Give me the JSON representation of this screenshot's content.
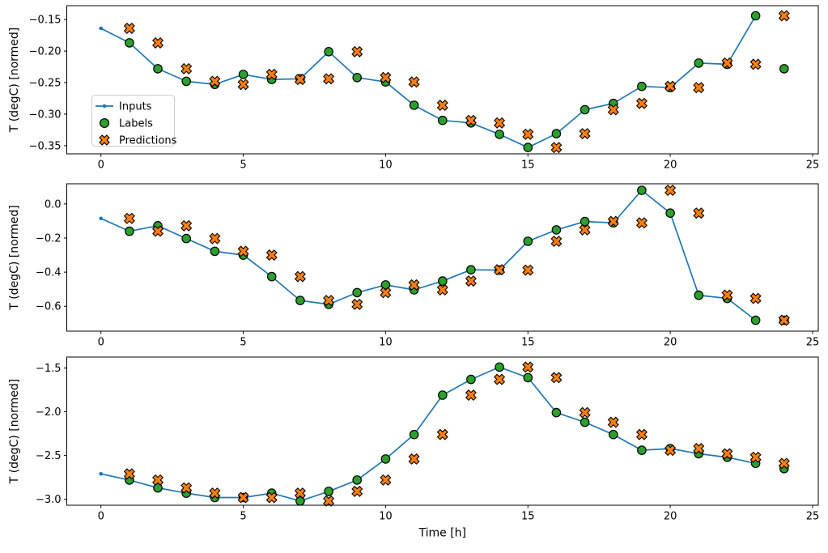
{
  "figure": {
    "background": "#ffffff",
    "text_color": "#000000",
    "spine_color": "#000000"
  },
  "legend": {
    "location": "center-left of first subplot",
    "border_color": "#cccccc",
    "background": "rgba(255,255,255,0.8)",
    "entries": [
      {
        "label": "Inputs",
        "marker": "line-dot",
        "color": "#1f77b4",
        "edge_color": "#1f77b4"
      },
      {
        "label": "Labels",
        "marker": "circle",
        "color": "#2ca02c",
        "edge_color": "#000000"
      },
      {
        "label": "Predictions",
        "marker": "x-filled",
        "color": "#ff7f0e",
        "edge_color": "#000000"
      }
    ]
  },
  "chart_data": [
    {
      "type": "line",
      "name": "subplot-top",
      "ylabel": "T (degC) [normed]",
      "xlabel": "",
      "xlim": [
        -1.2,
        25.2
      ],
      "ylim": [
        -0.363,
        -0.128
      ],
      "xticks": [
        0,
        5,
        10,
        15,
        20,
        25
      ],
      "xtick_labels": [
        "0",
        "5",
        "10",
        "15",
        "20",
        "25"
      ],
      "yticks": [
        -0.15,
        -0.2,
        -0.25,
        -0.3,
        -0.35
      ],
      "ytick_labels": [
        "−0.15",
        "−0.20",
        "−0.25",
        "−0.30",
        "−0.35"
      ],
      "grid": false,
      "show_legend": true,
      "series": [
        {
          "name": "Inputs",
          "kind": "line",
          "marker": "dot",
          "color": "#1f77b4",
          "x": [
            0,
            1,
            2,
            3,
            4,
            5,
            6,
            7,
            8,
            9,
            10,
            11,
            12,
            13,
            14,
            15,
            16,
            17,
            18,
            19,
            20,
            21,
            22,
            23
          ],
          "y": [
            -0.164,
            -0.187,
            -0.228,
            -0.248,
            -0.253,
            -0.237,
            -0.245,
            -0.244,
            -0.201,
            -0.242,
            -0.249,
            -0.286,
            -0.31,
            -0.314,
            -0.332,
            -0.353,
            -0.331,
            -0.293,
            -0.283,
            -0.256,
            -0.258,
            -0.219,
            -0.221,
            -0.144
          ]
        },
        {
          "name": "Labels",
          "kind": "scatter",
          "marker": "circle",
          "color": "#2ca02c",
          "edge_color": "#000000",
          "x": [
            1,
            2,
            3,
            4,
            5,
            6,
            7,
            8,
            9,
            10,
            11,
            12,
            13,
            14,
            15,
            16,
            17,
            18,
            19,
            20,
            21,
            22,
            23,
            24
          ],
          "y": [
            -0.187,
            -0.228,
            -0.248,
            -0.253,
            -0.237,
            -0.245,
            -0.244,
            -0.201,
            -0.242,
            -0.249,
            -0.286,
            -0.31,
            -0.314,
            -0.332,
            -0.353,
            -0.331,
            -0.293,
            -0.283,
            -0.256,
            -0.258,
            -0.219,
            -0.221,
            -0.144,
            -0.228
          ]
        },
        {
          "name": "Predictions",
          "kind": "scatter",
          "marker": "X",
          "color": "#ff7f0e",
          "edge_color": "#000000",
          "x": [
            1,
            2,
            3,
            4,
            5,
            6,
            7,
            8,
            9,
            10,
            11,
            12,
            13,
            14,
            15,
            16,
            17,
            18,
            19,
            20,
            21,
            22,
            23,
            24
          ],
          "y": [
            -0.164,
            -0.187,
            -0.228,
            -0.248,
            -0.253,
            -0.237,
            -0.245,
            -0.244,
            -0.201,
            -0.242,
            -0.249,
            -0.286,
            -0.31,
            -0.314,
            -0.332,
            -0.353,
            -0.331,
            -0.293,
            -0.283,
            -0.256,
            -0.258,
            -0.219,
            -0.221,
            -0.144
          ]
        }
      ]
    },
    {
      "type": "line",
      "name": "subplot-middle",
      "ylabel": "T (degC) [normed]",
      "xlabel": "",
      "xlim": [
        -1.2,
        25.2
      ],
      "ylim": [
        -0.746,
        0.118
      ],
      "xticks": [
        0,
        5,
        10,
        15,
        20,
        25
      ],
      "xtick_labels": [
        "0",
        "5",
        "10",
        "15",
        "20",
        "25"
      ],
      "yticks": [
        0.0,
        -0.2,
        -0.4,
        -0.6
      ],
      "ytick_labels": [
        "0.0",
        "−0.2",
        "−0.4",
        "−0.6"
      ],
      "grid": false,
      "show_legend": false,
      "series": [
        {
          "name": "Inputs",
          "kind": "line",
          "marker": "dot",
          "color": "#1f77b4",
          "x": [
            0,
            1,
            2,
            3,
            4,
            5,
            6,
            7,
            8,
            9,
            10,
            11,
            12,
            13,
            14,
            15,
            16,
            17,
            18,
            19,
            20,
            21,
            22,
            23
          ],
          "y": [
            -0.085,
            -0.16,
            -0.128,
            -0.203,
            -0.278,
            -0.3,
            -0.426,
            -0.566,
            -0.589,
            -0.52,
            -0.475,
            -0.504,
            -0.452,
            -0.386,
            -0.388,
            -0.219,
            -0.152,
            -0.103,
            -0.111,
            0.08,
            -0.054,
            -0.535,
            -0.554,
            -0.682
          ]
        },
        {
          "name": "Labels",
          "kind": "scatter",
          "marker": "circle",
          "color": "#2ca02c",
          "edge_color": "#000000",
          "x": [
            1,
            2,
            3,
            4,
            5,
            6,
            7,
            8,
            9,
            10,
            11,
            12,
            13,
            14,
            15,
            16,
            17,
            18,
            19,
            20,
            21,
            22,
            23,
            24
          ],
          "y": [
            -0.16,
            -0.128,
            -0.203,
            -0.278,
            -0.3,
            -0.426,
            -0.566,
            -0.589,
            -0.52,
            -0.475,
            -0.504,
            -0.452,
            -0.386,
            -0.388,
            -0.219,
            -0.152,
            -0.103,
            -0.111,
            0.08,
            -0.054,
            -0.535,
            -0.554,
            -0.682,
            -0.682
          ]
        },
        {
          "name": "Predictions",
          "kind": "scatter",
          "marker": "X",
          "color": "#ff7f0e",
          "edge_color": "#000000",
          "x": [
            1,
            2,
            3,
            4,
            5,
            6,
            7,
            8,
            9,
            10,
            11,
            12,
            13,
            14,
            15,
            16,
            17,
            18,
            19,
            20,
            21,
            22,
            23,
            24
          ],
          "y": [
            -0.085,
            -0.16,
            -0.128,
            -0.203,
            -0.278,
            -0.3,
            -0.426,
            -0.566,
            -0.589,
            -0.52,
            -0.475,
            -0.504,
            -0.452,
            -0.386,
            -0.388,
            -0.219,
            -0.152,
            -0.103,
            -0.111,
            0.08,
            -0.054,
            -0.535,
            -0.554,
            -0.682
          ]
        }
      ]
    },
    {
      "type": "line",
      "name": "subplot-bottom",
      "ylabel": "T (degC) [normed]",
      "xlabel": "Time [h]",
      "xlim": [
        -1.2,
        25.2
      ],
      "ylim": [
        -3.068,
        -1.375
      ],
      "xticks": [
        0,
        5,
        10,
        15,
        20,
        25
      ],
      "xtick_labels": [
        "0",
        "5",
        "10",
        "15",
        "20",
        "25"
      ],
      "yticks": [
        -1.5,
        -2.0,
        -2.5,
        -3.0
      ],
      "ytick_labels": [
        "−1.5",
        "−2.0",
        "−2.5",
        "−3.0"
      ],
      "grid": false,
      "show_legend": false,
      "series": [
        {
          "name": "Inputs",
          "kind": "line",
          "marker": "dot",
          "color": "#1f77b4",
          "x": [
            0,
            1,
            2,
            3,
            4,
            5,
            6,
            7,
            8,
            9,
            10,
            11,
            12,
            13,
            14,
            15,
            16,
            17,
            18,
            19,
            20,
            21,
            22,
            23
          ],
          "y": [
            -2.71,
            -2.78,
            -2.87,
            -2.93,
            -2.98,
            -2.98,
            -2.93,
            -3.02,
            -2.91,
            -2.78,
            -2.54,
            -2.26,
            -1.81,
            -1.63,
            -1.49,
            -1.61,
            -2.01,
            -2.12,
            -2.26,
            -2.44,
            -2.42,
            -2.48,
            -2.52,
            -2.59
          ]
        },
        {
          "name": "Labels",
          "kind": "scatter",
          "marker": "circle",
          "color": "#2ca02c",
          "edge_color": "#000000",
          "x": [
            1,
            2,
            3,
            4,
            5,
            6,
            7,
            8,
            9,
            10,
            11,
            12,
            13,
            14,
            15,
            16,
            17,
            18,
            19,
            20,
            21,
            22,
            23,
            24
          ],
          "y": [
            -2.78,
            -2.87,
            -2.93,
            -2.98,
            -2.98,
            -2.93,
            -3.02,
            -2.91,
            -2.78,
            -2.54,
            -2.26,
            -1.81,
            -1.63,
            -1.49,
            -1.61,
            -2.01,
            -2.12,
            -2.26,
            -2.44,
            -2.42,
            -2.48,
            -2.52,
            -2.59,
            -2.65
          ]
        },
        {
          "name": "Predictions",
          "kind": "scatter",
          "marker": "X",
          "color": "#ff7f0e",
          "edge_color": "#000000",
          "x": [
            1,
            2,
            3,
            4,
            5,
            6,
            7,
            8,
            9,
            10,
            11,
            12,
            13,
            14,
            15,
            16,
            17,
            18,
            19,
            20,
            21,
            22,
            23,
            24
          ],
          "y": [
            -2.71,
            -2.78,
            -2.87,
            -2.93,
            -2.98,
            -2.98,
            -2.93,
            -3.02,
            -2.91,
            -2.78,
            -2.54,
            -2.26,
            -1.81,
            -1.63,
            -1.49,
            -1.61,
            -2.01,
            -2.12,
            -2.26,
            -2.44,
            -2.42,
            -2.48,
            -2.52,
            -2.59
          ]
        }
      ]
    }
  ]
}
